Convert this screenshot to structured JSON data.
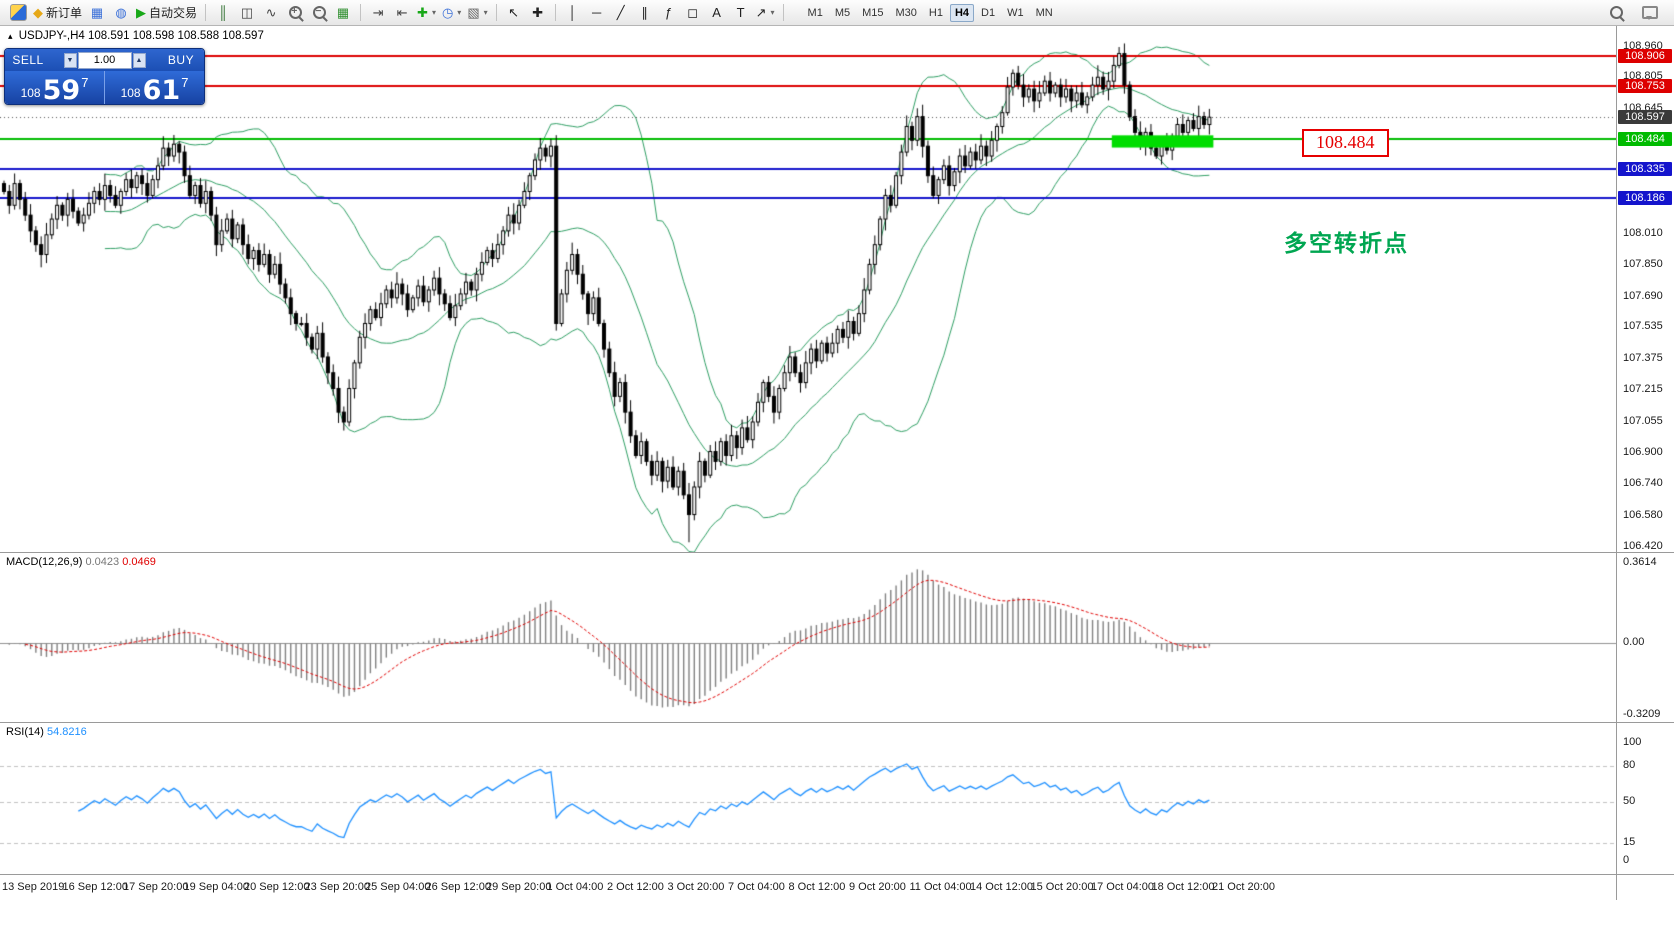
{
  "toolbar": {
    "groups": [
      {
        "items": [
          {
            "name": "app-icon-button",
            "css": "appicon"
          }
        ]
      },
      {
        "items": [
          {
            "name": "new-order-button",
            "glyph": "◆",
            "color": "#e6a817",
            "label": "新订单"
          }
        ]
      },
      {
        "items": [
          {
            "name": "profiles-button",
            "glyph": "▦",
            "color": "#3a6fd8"
          },
          {
            "name": "alerts-button",
            "glyph": "◍",
            "color": "#3a6fd8"
          }
        ]
      },
      {
        "items": [
          {
            "name": "autotrading-button",
            "glyph": "▶",
            "color": "#18a818",
            "label": "自动交易"
          }
        ]
      },
      {
        "sep": true
      },
      {
        "items": [
          {
            "name": "bar-chart-type-button",
            "glyph": "║",
            "color": "#2f6f2f"
          },
          {
            "name": "candlestick-type-button",
            "glyph": "◫",
            "color": "#444444"
          },
          {
            "name": "line-chart-type-button",
            "glyph": "∿",
            "color": "#444444"
          }
        ]
      },
      {
        "items": [
          {
            "name": "zoom-in-button",
            "css": "mag plus"
          },
          {
            "name": "zoom-out-button",
            "css": "mag minus"
          }
        ]
      },
      {
        "items": [
          {
            "name": "tile-windows-button",
            "glyph": "▦",
            "color": "#2f8f2f"
          }
        ]
      },
      {
        "sep": true
      },
      {
        "items": [
          {
            "name": "auto-scroll-button",
            "glyph": "⇥",
            "color": "#444444"
          },
          {
            "name": "chart-shift-button",
            "glyph": "⇤",
            "color": "#444444"
          }
        ]
      },
      {
        "items": [
          {
            "name": "indicators-button",
            "glyph": "✚",
            "color": "#18a818",
            "caret": true
          },
          {
            "name": "periods-button",
            "glyph": "◷",
            "color": "#3a6fd8",
            "caret": true
          },
          {
            "name": "templates-button",
            "glyph": "▧",
            "color": "#666666",
            "caret": true
          }
        ]
      },
      {
        "sep": true
      },
      {
        "items": [
          {
            "name": "cursor-button",
            "glyph": "↖",
            "color": "#222222"
          },
          {
            "name": "crosshair-button",
            "glyph": "✚",
            "color": "#222222"
          }
        ]
      },
      {
        "sep": true
      },
      {
        "items": [
          {
            "name": "vertical-line-button",
            "glyph": "│",
            "color": "#222222"
          },
          {
            "name": "horizontal-line-button",
            "glyph": "─",
            "color": "#222222"
          },
          {
            "name": "trendline-button",
            "glyph": "╱",
            "color": "#222222"
          },
          {
            "name": "channel-button",
            "glyph": "∥",
            "color": "#222222"
          },
          {
            "name": "fibonacci-button",
            "glyph": "ƒ",
            "color": "#222222"
          },
          {
            "name": "shapes-button",
            "glyph": "◻",
            "color": "#222222"
          },
          {
            "name": "text-button",
            "glyph": "A",
            "color": "#222222"
          },
          {
            "name": "label-button",
            "glyph": "T",
            "color": "#222222"
          },
          {
            "name": "arrows-button",
            "glyph": "↗",
            "color": "#222222",
            "caret": true
          }
        ]
      },
      {
        "sep": true
      }
    ],
    "timeframes": [
      "M1",
      "M5",
      "M15",
      "M30",
      "H1",
      "H4",
      "D1",
      "W1",
      "MN"
    ],
    "active_timeframe": "H4",
    "right_items": [
      {
        "name": "search-button",
        "css": "mag"
      },
      {
        "name": "feedback-button",
        "css": "bubble"
      }
    ]
  },
  "chart": {
    "collapse_glyph": "▴",
    "symbol_period": "USDJPY-,H4",
    "ohlc_line": "108.591 108.598 108.588 108.597",
    "annotations": {
      "price_label": "108.484",
      "price_label_color": "#e60000",
      "note_text": "多空转折点",
      "note_color": "#00a651"
    }
  },
  "quote_panel": {
    "sell_label": "SELL",
    "buy_label": "BUY",
    "volume": "1.00",
    "spin_down_glyph": "▼",
    "spin_up_glyph": "▲",
    "sell": {
      "prefix": "108",
      "big": "59",
      "pip": "7"
    },
    "buy": {
      "prefix": "108",
      "big": "61",
      "pip": "7"
    }
  },
  "macd_panel": {
    "title": "MACD(12,26,9)",
    "value_main": "0.0423",
    "value_signal": "0.0469"
  },
  "rsi_panel": {
    "title": "RSI(14)",
    "value": "54.8216"
  },
  "chart_data": {
    "type": "candlestick",
    "symbol": "USDJPY-",
    "timeframe": "H4",
    "ohlc_display": {
      "open": "108.591",
      "high": "108.598",
      "low": "108.588",
      "close": "108.597"
    },
    "ylim": [
      106.39,
      109.06
    ],
    "closes": [
      108.22,
      108.15,
      108.26,
      108.18,
      108.1,
      108.02,
      107.95,
      107.9,
      108.0,
      108.08,
      108.15,
      108.1,
      108.18,
      108.12,
      108.06,
      108.1,
      108.16,
      108.22,
      108.18,
      108.25,
      108.2,
      108.15,
      108.22,
      108.28,
      108.24,
      108.3,
      108.26,
      108.2,
      108.28,
      108.35,
      108.44,
      108.4,
      108.46,
      108.42,
      108.3,
      108.2,
      108.25,
      108.16,
      108.22,
      108.1,
      107.95,
      108.02,
      108.08,
      107.98,
      108.05,
      107.95,
      107.88,
      107.92,
      107.85,
      107.9,
      107.8,
      107.85,
      107.75,
      107.68,
      107.6,
      107.55,
      107.55,
      107.48,
      107.42,
      107.5,
      107.38,
      107.3,
      107.22,
      107.1,
      107.05,
      107.22,
      107.35,
      107.48,
      107.55,
      107.62,
      107.58,
      107.65,
      107.72,
      107.68,
      107.75,
      107.7,
      107.62,
      107.68,
      107.74,
      107.66,
      107.72,
      107.78,
      107.7,
      107.65,
      107.58,
      107.64,
      107.7,
      107.76,
      107.72,
      107.8,
      107.86,
      107.92,
      107.88,
      107.95,
      108.02,
      108.1,
      108.06,
      108.15,
      108.22,
      108.3,
      108.38,
      108.44,
      108.4,
      108.45,
      107.55,
      107.7,
      107.82,
      107.9,
      107.8,
      107.7,
      107.6,
      107.68,
      107.55,
      107.42,
      107.3,
      107.18,
      107.25,
      107.1,
      106.98,
      106.88,
      106.95,
      106.85,
      106.78,
      106.85,
      106.75,
      106.82,
      106.72,
      106.8,
      106.68,
      106.58,
      106.72,
      106.85,
      106.78,
      106.9,
      106.85,
      106.95,
      106.88,
      106.98,
      106.92,
      107.02,
      106.96,
      107.05,
      107.15,
      107.25,
      107.18,
      107.1,
      107.22,
      107.3,
      107.38,
      107.3,
      107.25,
      107.35,
      107.42,
      107.36,
      107.45,
      107.4,
      107.45,
      107.52,
      107.48,
      107.56,
      107.5,
      107.6,
      107.72,
      107.85,
      107.95,
      108.08,
      108.2,
      108.15,
      108.3,
      108.42,
      108.55,
      108.48,
      108.6,
      108.45,
      108.3,
      108.2,
      108.28,
      108.35,
      108.25,
      108.32,
      108.4,
      108.35,
      108.42,
      108.38,
      108.45,
      108.4,
      108.48,
      108.55,
      108.62,
      108.75,
      108.82,
      108.76,
      108.7,
      108.74,
      108.68,
      108.72,
      108.78,
      108.72,
      108.76,
      108.7,
      108.74,
      108.68,
      108.72,
      108.66,
      108.7,
      108.76,
      108.8,
      108.74,
      108.78,
      108.86,
      108.92,
      108.76,
      108.6,
      108.52,
      108.46,
      108.52,
      108.44,
      108.4,
      108.47,
      108.43,
      108.5,
      108.56,
      108.52,
      108.58,
      108.54,
      108.6,
      108.56,
      108.597
    ],
    "wick_overrides": {
      "7": {
        "low_extra": 0.05
      },
      "63": {
        "low_extra": 0.04
      },
      "129": {
        "low_extra": 0.09
      },
      "209": {
        "high_extra": 0.03
      }
    },
    "bollinger": {
      "period": 20,
      "deviation": 2,
      "color": "#2e9e63"
    },
    "horizontal_lines": [
      {
        "price": 108.906,
        "color": "#dd0000",
        "width": 2,
        "axis_label": "108.906"
      },
      {
        "price": 108.753,
        "color": "#dd0000",
        "width": 2,
        "axis_label": "108.753"
      },
      {
        "price": 108.484,
        "color": "#00bb00",
        "width": 2,
        "axis_label": "108.484"
      },
      {
        "price": 108.335,
        "color": "#1414cc",
        "width": 2,
        "axis_label": "108.335"
      },
      {
        "price": 108.186,
        "color": "#1414cc",
        "width": 2,
        "axis_label": "108.186"
      }
    ],
    "current_price": {
      "value": 108.597,
      "axis_label": "108.597",
      "badge_bg": "#3a3a3a"
    },
    "zone": {
      "start_bar": 209,
      "price_top": 108.505,
      "price_bottom": 108.443,
      "color": "#00dd00"
    },
    "y_ticks": [
      "108.960",
      "108.805",
      "108.645",
      "108.010",
      "107.850",
      "107.690",
      "107.535",
      "107.375",
      "107.215",
      "107.055",
      "106.900",
      "106.740",
      "106.580",
      "106.420"
    ],
    "time_labels": [
      "13 Sep 2019",
      "16 Sep 12:00",
      "17 Sep 20:00",
      "19 Sep 04:00",
      "20 Sep 12:00",
      "23 Sep 20:00",
      "25 Sep 04:00",
      "26 Sep 12:00",
      "29 Sep 20:00",
      "1 Oct 04:00",
      "2 Oct 12:00",
      "3 Oct 20:00",
      "7 Oct 04:00",
      "8 Oct 12:00",
      "9 Oct 20:00",
      "11 Oct 04:00",
      "14 Oct 12:00",
      "15 Oct 20:00",
      "17 Oct 04:00",
      "18 Oct 12:00",
      "21 Oct 20:00"
    ],
    "macd": {
      "fast": 12,
      "slow": 26,
      "signal": 9,
      "ylim": [
        -0.347,
        0.396
      ],
      "scale_ticks": [
        {
          "label": "0.3614",
          "value": 0.3614
        },
        {
          "label": "0.00",
          "value": 0
        },
        {
          "label": "-0.3209",
          "value": -0.3209
        }
      ],
      "hist_color": "#808080",
      "signal_color": "#e00000",
      "zero_color": "#909090"
    },
    "rsi": {
      "period": 14,
      "ylim": [
        -10,
        115
      ],
      "levels": [
        80,
        50,
        15
      ],
      "scale_ticks": [
        {
          "label": "100",
          "value": 100
        },
        {
          "label": "80",
          "value": 80
        },
        {
          "label": "50",
          "value": 50
        },
        {
          "label": "15",
          "value": 15
        },
        {
          "label": "0",
          "value": 0
        }
      ],
      "color": "#1e90ff",
      "level_color": "#c0c0c0"
    }
  }
}
